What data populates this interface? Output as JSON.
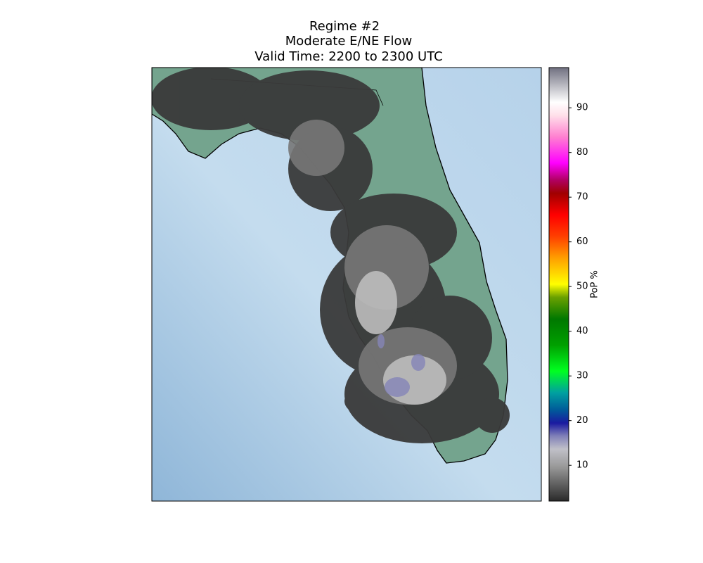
{
  "title": [
    "Regime #2",
    "Moderate E/NE Flow",
    "Valid Time: 2200 to 2300 UTC"
  ],
  "colorbar": {
    "label": "PoP %",
    "lim": [
      2,
      99
    ],
    "ticks": [
      10,
      20,
      30,
      40,
      50,
      60,
      70,
      80,
      90
    ]
  }
}
